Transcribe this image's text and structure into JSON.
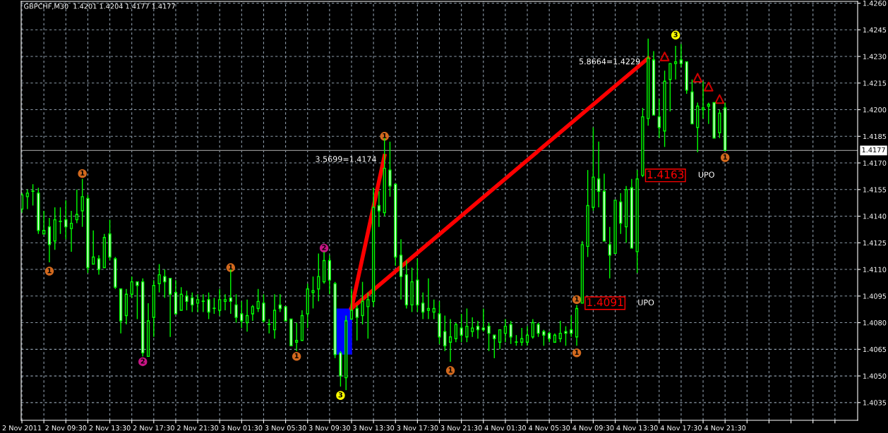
{
  "chart_data": {
    "type": "candlestick",
    "title": "GBPCHF,M30  1.4201 1.4204 1.4177 1.4177",
    "color": "#00ff00",
    "grid": true,
    "x": [
      "2011-11-02T05:30",
      "2011-11-02T06:00",
      "2011-11-02T06:30",
      "2011-11-02T07:00",
      "2011-11-02T07:30",
      "2011-11-02T08:00",
      "2011-11-02T08:30",
      "2011-11-02T09:00",
      "2011-11-02T09:30",
      "2011-11-02T10:00",
      "2011-11-02T10:30",
      "2011-11-02T11:00",
      "2011-11-02T11:30",
      "2011-11-02T12:00",
      "2011-11-02T12:30",
      "2011-11-02T13:00",
      "2011-11-02T13:30",
      "2011-11-02T14:00",
      "2011-11-02T14:30",
      "2011-11-02T15:00",
      "2011-11-02T15:30",
      "2011-11-02T16:00",
      "2011-11-02T16:30",
      "2011-11-02T17:00",
      "2011-11-02T17:30",
      "2011-11-02T18:00",
      "2011-11-02T18:30",
      "2011-11-02T19:00",
      "2011-11-02T19:30",
      "2011-11-02T20:00",
      "2011-11-02T20:30",
      "2011-11-02T21:00",
      "2011-11-02T21:30",
      "2011-11-02T22:00",
      "2011-11-02T22:30",
      "2011-11-02T23:00",
      "2011-11-02T23:30",
      "2011-11-03T00:00",
      "2011-11-03T00:30",
      "2011-11-03T01:00",
      "2011-11-03T01:30",
      "2011-11-03T02:00",
      "2011-11-03T02:30",
      "2011-11-03T03:00",
      "2011-11-03T03:30",
      "2011-11-03T04:00",
      "2011-11-03T04:30",
      "2011-11-03T05:00",
      "2011-11-03T05:30",
      "2011-11-03T06:00",
      "2011-11-03T06:30",
      "2011-11-03T07:00",
      "2011-11-03T07:30",
      "2011-11-03T08:00",
      "2011-11-03T08:30",
      "2011-11-03T09:00",
      "2011-11-03T09:30",
      "2011-11-03T10:00",
      "2011-11-03T10:30",
      "2011-11-03T11:00",
      "2011-11-03T11:30",
      "2011-11-03T12:00",
      "2011-11-03T12:30",
      "2011-11-03T13:00",
      "2011-11-03T13:30",
      "2011-11-03T14:00",
      "2011-11-03T14:30",
      "2011-11-03T15:00",
      "2011-11-03T15:30",
      "2011-11-03T16:00",
      "2011-11-03T16:30",
      "2011-11-03T17:00",
      "2011-11-03T17:30",
      "2011-11-03T18:00",
      "2011-11-03T18:30",
      "2011-11-03T19:00",
      "2011-11-03T19:30",
      "2011-11-03T20:00",
      "2011-11-03T20:30",
      "2011-11-03T21:00",
      "2011-11-03T21:30",
      "2011-11-03T22:00",
      "2011-11-03T22:30",
      "2011-11-03T23:00",
      "2011-11-03T23:30",
      "2011-11-04T00:00",
      "2011-11-04T00:30",
      "2011-11-04T01:00",
      "2011-11-04T01:30",
      "2011-11-04T02:00",
      "2011-11-04T02:30",
      "2011-11-04T03:00",
      "2011-11-04T03:30",
      "2011-11-04T04:00",
      "2011-11-04T04:30",
      "2011-11-04T05:00",
      "2011-11-04T05:30",
      "2011-11-04T06:00",
      "2011-11-04T06:30",
      "2011-11-04T07:00",
      "2011-11-04T07:30",
      "2011-11-04T08:00",
      "2011-11-04T08:30",
      "2011-11-04T09:00",
      "2011-11-04T09:30",
      "2011-11-04T10:00",
      "2011-11-04T10:30",
      "2011-11-04T11:00",
      "2011-11-04T11:30",
      "2011-11-04T12:00",
      "2011-11-04T12:30",
      "2011-11-04T13:00",
      "2011-11-04T13:30",
      "2011-11-04T14:00",
      "2011-11-04T14:30",
      "2011-11-04T15:00",
      "2011-11-04T15:30",
      "2011-11-04T16:00",
      "2011-11-04T16:30",
      "2011-11-04T17:00",
      "2011-11-04T17:30",
      "2011-11-04T18:00",
      "2011-11-04T18:30",
      "2011-11-04T19:00",
      "2011-11-04T19:30",
      "2011-11-04T20:00",
      "2011-11-04T20:30",
      "2011-11-04T21:00",
      "2011-11-04T21:30"
    ],
    "ohlc": [
      [
        1.4144,
        1.4153,
        1.4142,
        1.4152
      ],
      [
        1.4151,
        1.4155,
        1.4144,
        1.4153
      ],
      [
        1.4154,
        1.4158,
        1.4146,
        1.4154
      ],
      [
        1.4153,
        1.4156,
        1.413,
        1.4132
      ],
      [
        1.413,
        1.4143,
        1.413,
        1.4132
      ],
      [
        1.4134,
        1.4139,
        1.4114,
        1.4124
      ],
      [
        1.4126,
        1.4145,
        1.4121,
        1.4138
      ],
      [
        1.4137,
        1.4145,
        1.413,
        1.4137
      ],
      [
        1.4138,
        1.4149,
        1.4127,
        1.4134
      ],
      [
        1.4133,
        1.4143,
        1.412,
        1.4136
      ],
      [
        1.4138,
        1.4155,
        1.4136,
        1.4141
      ],
      [
        1.4143,
        1.4161,
        1.4134,
        1.4151
      ],
      [
        1.415,
        1.4152,
        1.4108,
        1.4111
      ],
      [
        1.4113,
        1.4132,
        1.4113,
        1.4117
      ],
      [
        1.4116,
        1.4118,
        1.4107,
        1.411
      ],
      [
        1.4111,
        1.413,
        1.4111,
        1.4128
      ],
      [
        1.413,
        1.4138,
        1.4115,
        1.4117
      ],
      [
        1.4116,
        1.4117,
        1.4099,
        1.41
      ],
      [
        1.4099,
        1.4099,
        1.4074,
        1.4081
      ],
      [
        1.4084,
        1.4099,
        1.4079,
        1.4096
      ],
      [
        1.4096,
        1.4106,
        1.4094,
        1.4103
      ],
      [
        1.4103,
        1.4103,
        1.4082,
        1.4101
      ],
      [
        1.4103,
        1.4105,
        1.4061,
        1.4063
      ],
      [
        1.4061,
        1.4091,
        1.4061,
        1.4081
      ],
      [
        1.4083,
        1.4104,
        1.4072,
        1.4101
      ],
      [
        1.4102,
        1.4113,
        1.4097,
        1.4107
      ],
      [
        1.4106,
        1.411,
        1.4094,
        1.4103
      ],
      [
        1.4105,
        1.4105,
        1.4072,
        1.4096
      ],
      [
        1.4097,
        1.4104,
        1.4085,
        1.4085
      ],
      [
        1.4087,
        1.41,
        1.4087,
        1.4096
      ],
      [
        1.4095,
        1.4098,
        1.4087,
        1.4092
      ],
      [
        1.4094,
        1.4097,
        1.4086,
        1.409
      ],
      [
        1.4091,
        1.4096,
        1.4086,
        1.4093
      ],
      [
        1.4092,
        1.4096,
        1.4086,
        1.4092
      ],
      [
        1.4093,
        1.4097,
        1.4082,
        1.4086
      ],
      [
        1.4088,
        1.4094,
        1.4085,
        1.4088
      ],
      [
        1.4087,
        1.4099,
        1.4084,
        1.4093
      ],
      [
        1.4092,
        1.4096,
        1.4087,
        1.4093
      ],
      [
        1.4094,
        1.411,
        1.4085,
        1.4092
      ],
      [
        1.409,
        1.4096,
        1.408,
        1.4083
      ],
      [
        1.4085,
        1.4092,
        1.4077,
        1.4081
      ],
      [
        1.408,
        1.4093,
        1.4075,
        1.4084
      ],
      [
        1.4085,
        1.409,
        1.4081,
        1.4089
      ],
      [
        1.4088,
        1.4099,
        1.4086,
        1.4092
      ],
      [
        1.4091,
        1.4096,
        1.408,
        1.4081
      ],
      [
        1.4079,
        1.4082,
        1.4074,
        1.4079
      ],
      [
        1.4076,
        1.4096,
        1.4071,
        1.4087
      ],
      [
        1.409,
        1.4096,
        1.4086,
        1.4088
      ],
      [
        1.4089,
        1.4089,
        1.4081,
        1.4081
      ],
      [
        1.4082,
        1.4082,
        1.4067,
        1.4067
      ],
      [
        1.4069,
        1.408,
        1.4064,
        1.407
      ],
      [
        1.407,
        1.4087,
        1.407,
        1.4084
      ],
      [
        1.4085,
        1.4102,
        1.4077,
        1.4099
      ],
      [
        1.4097,
        1.4106,
        1.4088,
        1.4098
      ],
      [
        1.4099,
        1.4119,
        1.4092,
        1.4106
      ],
      [
        1.4103,
        1.412,
        1.4102,
        1.4115
      ],
      [
        1.4115,
        1.4118,
        1.4096,
        1.4104
      ],
      [
        1.4102,
        1.4103,
        1.406,
        1.4062
      ],
      [
        1.4063,
        1.4064,
        1.4044,
        1.405
      ],
      [
        1.4049,
        1.4084,
        1.4042,
        1.4081
      ],
      [
        1.4082,
        1.4099,
        1.4082,
        1.4087
      ],
      [
        1.4088,
        1.409,
        1.407,
        1.4083
      ],
      [
        1.4084,
        1.4103,
        1.4079,
        1.4092
      ],
      [
        1.4089,
        1.4097,
        1.4071,
        1.4093
      ],
      [
        1.4092,
        1.4156,
        1.4089,
        1.4145
      ],
      [
        1.4146,
        1.4154,
        1.4134,
        1.4143
      ],
      [
        1.4142,
        1.4184,
        1.414,
        1.4167
      ],
      [
        1.4166,
        1.4182,
        1.4151,
        1.4157
      ],
      [
        1.4158,
        1.4158,
        1.4112,
        1.4117
      ],
      [
        1.4118,
        1.4127,
        1.4093,
        1.4106
      ],
      [
        1.4107,
        1.4115,
        1.4088,
        1.409
      ],
      [
        1.409,
        1.4111,
        1.4086,
        1.4103
      ],
      [
        1.4104,
        1.4116,
        1.4086,
        1.409
      ],
      [
        1.4091,
        1.4097,
        1.4082,
        1.4086
      ],
      [
        1.4087,
        1.4105,
        1.4082,
        1.4088
      ],
      [
        1.4086,
        1.4093,
        1.4082,
        1.4088
      ],
      [
        1.4085,
        1.4092,
        1.4068,
        1.4072
      ],
      [
        1.4075,
        1.4084,
        1.4064,
        1.4067
      ],
      [
        1.4069,
        1.4082,
        1.4058,
        1.4072
      ],
      [
        1.4071,
        1.408,
        1.4069,
        1.4079
      ],
      [
        1.4077,
        1.4085,
        1.4069,
        1.4073
      ],
      [
        1.4072,
        1.4088,
        1.4069,
        1.4078
      ],
      [
        1.4075,
        1.4083,
        1.4072,
        1.4077
      ],
      [
        1.4078,
        1.4081,
        1.4071,
        1.4076
      ],
      [
        1.4077,
        1.4088,
        1.4075,
        1.4076
      ],
      [
        1.4078,
        1.408,
        1.4064,
        1.4074
      ],
      [
        1.4073,
        1.4073,
        1.406,
        1.4071
      ],
      [
        1.4069,
        1.4076,
        1.4065,
        1.4076
      ],
      [
        1.4074,
        1.4082,
        1.4069,
        1.4078
      ],
      [
        1.4079,
        1.4081,
        1.4068,
        1.4072
      ],
      [
        1.4069,
        1.4073,
        1.4067,
        1.4069
      ],
      [
        1.4069,
        1.4077,
        1.4067,
        1.4071
      ],
      [
        1.4069,
        1.4078,
        1.4067,
        1.4073
      ],
      [
        1.4072,
        1.4082,
        1.4071,
        1.408
      ],
      [
        1.4079,
        1.408,
        1.4072,
        1.4074
      ],
      [
        1.4075,
        1.4076,
        1.4067,
        1.4073
      ],
      [
        1.4074,
        1.4075,
        1.4069,
        1.4071
      ],
      [
        1.4069,
        1.4074,
        1.4069,
        1.4073
      ],
      [
        1.4071,
        1.4081,
        1.4069,
        1.4074
      ],
      [
        1.4075,
        1.4078,
        1.4067,
        1.4074
      ],
      [
        1.4076,
        1.4084,
        1.4072,
        1.4074
      ],
      [
        1.4072,
        1.409,
        1.4067,
        1.4088
      ],
      [
        1.4091,
        1.4126,
        1.4091,
        1.4124
      ],
      [
        1.4123,
        1.4166,
        1.4117,
        1.4146
      ],
      [
        1.4145,
        1.419,
        1.4143,
        1.4162
      ],
      [
        1.4161,
        1.4182,
        1.4145,
        1.4154
      ],
      [
        1.4154,
        1.4164,
        1.4126,
        1.4126
      ],
      [
        1.4124,
        1.4134,
        1.4105,
        1.4118
      ],
      [
        1.4119,
        1.4149,
        1.4119,
        1.4149
      ],
      [
        1.4148,
        1.4153,
        1.413,
        1.4136
      ],
      [
        1.4134,
        1.4157,
        1.4125,
        1.4155
      ],
      [
        1.4156,
        1.4161,
        1.4122,
        1.4122
      ],
      [
        1.412,
        1.4166,
        1.4108,
        1.4161
      ],
      [
        1.4163,
        1.4201,
        1.4162,
        1.4196
      ],
      [
        1.4195,
        1.424,
        1.4191,
        1.4229
      ],
      [
        1.4228,
        1.4233,
        1.4197,
        1.4197
      ],
      [
        1.4196,
        1.4206,
        1.4184,
        1.419
      ],
      [
        1.4188,
        1.4222,
        1.4179,
        1.4216
      ],
      [
        1.4217,
        1.4226,
        1.4199,
        1.4226
      ],
      [
        1.4226,
        1.4236,
        1.4217,
        1.4227
      ],
      [
        1.4228,
        1.4237,
        1.4224,
        1.4226
      ],
      [
        1.4227,
        1.4227,
        1.4209,
        1.4211
      ],
      [
        1.421,
        1.4217,
        1.4192,
        1.4192
      ],
      [
        1.419,
        1.4204,
        1.4176,
        1.4202
      ],
      [
        1.42,
        1.4216,
        1.4195,
        1.4201
      ],
      [
        1.4202,
        1.4204,
        1.4192,
        1.4203
      ],
      [
        1.4204,
        1.4204,
        1.4184,
        1.4184
      ],
      [
        1.4187,
        1.42,
        1.4184,
        1.4198
      ],
      [
        1.4201,
        1.4204,
        1.4177,
        1.4177
      ]
    ],
    "series": [
      {
        "type": "bar",
        "color": "#0000ff",
        "x": [
          "2011-11-03T10:45"
        ],
        "values": [
          0.0026
        ],
        "base": [
          1.4062
        ]
      },
      {
        "type": "line",
        "color": "#ff0000",
        "x": [
          "2011-11-03T11:30",
          "2011-11-03T14:30"
        ],
        "values": [
          1.4088,
          1.4174
        ],
        "value_labels": [
          null,
          "3.5699=1.4174"
        ]
      },
      {
        "type": "line",
        "color": "#ff0000",
        "x": [
          "2011-11-03T11:30",
          "2011-11-04T14:30"
        ],
        "values": [
          1.4088,
          1.4229
        ],
        "value_labels": [
          null,
          "5.8664=1.4229"
        ]
      },
      {
        "type": "scatter",
        "marker": "circle",
        "x": [
          "2011-11-02T08:00",
          "2011-11-02T11:00",
          "2011-11-02T16:30",
          "2011-11-03T00:30",
          "2011-11-03T06:30",
          "2011-11-03T09:00",
          "2011-11-03T10:30",
          "2011-11-03T14:30",
          "2011-11-03T20:30",
          "2011-11-04T08:00",
          "2011-11-04T08:00",
          "2011-11-04T17:00",
          "2011-11-04T21:30"
        ],
        "values": [
          1.4109,
          1.4164,
          1.4058,
          1.4111,
          1.4061,
          1.4122,
          1.4039,
          1.4185,
          1.4053,
          1.4093,
          1.4063,
          1.4242,
          1.4173
        ],
        "colors": [
          "#d2691e",
          "#d2691e",
          "#c71585",
          "#d2691e",
          "#d2691e",
          "#c71585",
          "#ffff00",
          "#d2691e",
          "#d2691e",
          "#d2691e",
          "#d2691e",
          "#ffff00",
          "#d2691e"
        ]
      },
      {
        "type": "scatter",
        "marker": "triangle",
        "color": "#cc0000",
        "x": [
          "2011-11-04T16:00",
          "2011-11-04T19:00",
          "2011-11-04T20:00",
          "2011-11-04T21:00"
        ],
        "values": [
          1.423,
          1.4218,
          1.4213,
          1.4206
        ]
      }
    ],
    "annotations": [
      {
        "text": "1",
        "x": "2011-11-02T08:00",
        "y": 1.4109
      },
      {
        "text": "1",
        "x": "2011-11-02T11:00",
        "y": 1.4164
      },
      {
        "text": "2",
        "x": "2011-11-02T16:30",
        "y": 1.4058
      },
      {
        "text": "1",
        "x": "2011-11-03T00:30",
        "y": 1.4111
      },
      {
        "text": "1",
        "x": "2011-11-03T06:30",
        "y": 1.4061
      },
      {
        "text": "2",
        "x": "2011-11-03T09:00",
        "y": 1.4122
      },
      {
        "text": "3",
        "x": "2011-11-03T10:30",
        "y": 1.4039
      },
      {
        "text": "1",
        "x": "2011-11-03T14:30",
        "y": 1.4185
      },
      {
        "text": "1",
        "x": "2011-11-03T20:30",
        "y": 1.4053
      },
      {
        "text": "1",
        "x": "2011-11-04T08:00",
        "y": 1.4093
      },
      {
        "text": "1",
        "x": "2011-11-04T08:00",
        "y": 1.4063
      },
      {
        "text": "3",
        "x": "2011-11-04T17:00",
        "y": 1.4242
      },
      {
        "text": "1",
        "x": "2011-11-04T21:30",
        "y": 1.4173
      },
      {
        "text": "1.4091",
        "x": "2011-11-04T08:30",
        "y": 1.4091
      },
      "UPO",
      {
        "text": "1.4163",
        "x": "2011-11-04T14:00",
        "y": 1.4163
      },
      "UPO"
    ],
    "ref_lines": [
      {
        "axis": "y",
        "value": 1.4177,
        "label": "1.4177",
        "color": "#8c8c8c"
      }
    ],
    "xlim": [
      "2011-11-02T05:26",
      "2011-11-05T09:34"
    ],
    "xticks": [
      {
        "value": "2011-11-02T05:30",
        "label": "2 Nov 2011"
      },
      {
        "value": "2011-11-02T07:30",
        "label": null
      },
      {
        "value": "2011-11-02T09:30",
        "label": "2 Nov 09:30"
      },
      {
        "value": "2011-11-02T11:30",
        "label": null
      },
      {
        "value": "2011-11-02T13:30",
        "label": "2 Nov 13:30"
      },
      {
        "value": "2011-11-02T15:30",
        "label": null
      },
      {
        "value": "2011-11-02T17:30",
        "label": "2 Nov 17:30"
      },
      {
        "value": "2011-11-02T19:30",
        "label": null
      },
      {
        "value": "2011-11-02T21:30",
        "label": "2 Nov 21:30"
      },
      {
        "value": "2011-11-02T23:30",
        "label": null
      },
      {
        "value": "2011-11-03T01:30",
        "label": "3 Nov 01:30"
      },
      {
        "value": "2011-11-03T03:30",
        "label": null
      },
      {
        "value": "2011-11-03T05:30",
        "label": "3 Nov 05:30"
      },
      {
        "value": "2011-11-03T07:30",
        "label": null
      },
      {
        "value": "2011-11-03T09:30",
        "label": "3 Nov 09:30"
      },
      {
        "value": "2011-11-03T11:30",
        "label": null
      },
      {
        "value": "2011-11-03T13:30",
        "label": "3 Nov 13:30"
      },
      {
        "value": "2011-11-03T15:30",
        "label": null
      },
      {
        "value": "2011-11-03T17:30",
        "label": "3 Nov 17:30"
      },
      {
        "value": "2011-11-03T19:30",
        "label": null
      },
      {
        "value": "2011-11-03T21:30",
        "label": "3 Nov 21:30"
      },
      {
        "value": "2011-11-03T23:30",
        "label": null
      },
      {
        "value": "2011-11-04T01:30",
        "label": "4 Nov 01:30"
      },
      {
        "value": "2011-11-04T03:30",
        "label": null
      },
      {
        "value": "2011-11-04T05:30",
        "label": "4 Nov 05:30"
      },
      {
        "value": "2011-11-04T07:30",
        "label": null
      },
      {
        "value": "2011-11-04T09:30",
        "label": "4 Nov 09:30"
      },
      {
        "value": "2011-11-04T11:30",
        "label": null
      },
      {
        "value": "2011-11-04T13:30",
        "label": "4 Nov 13:30"
      },
      {
        "value": "2011-11-04T15:30",
        "label": null
      },
      {
        "value": "2011-11-04T17:30",
        "label": "4 Nov 17:30"
      },
      {
        "value": "2011-11-04T19:30",
        "label": null
      },
      {
        "value": "2011-11-04T21:30",
        "label": "4 Nov 21:30"
      },
      {
        "value": "2011-11-04T23:30",
        "label": null
      },
      {
        "value": "2011-11-05T01:30",
        "label": null
      },
      {
        "value": "2011-11-05T03:30",
        "label": null
      },
      {
        "value": "2011-11-05T05:30",
        "label": null
      },
      {
        "value": "2011-11-05T07:30",
        "label": null
      }
    ],
    "ylim": [
      1.4025,
      1.4261
    ],
    "yticks": [
      {
        "value": 1.4035,
        "label": "1.4035"
      },
      {
        "value": 1.405,
        "label": "1.4050"
      },
      {
        "value": 1.4065,
        "label": "1.4065"
      },
      {
        "value": 1.408,
        "label": "1.4080"
      },
      {
        "value": 1.4095,
        "label": "1.4095"
      },
      {
        "value": 1.411,
        "label": "1.4110"
      },
      {
        "value": 1.4125,
        "label": "1.4125"
      },
      {
        "value": 1.414,
        "label": "1.4140"
      },
      {
        "value": 1.4155,
        "label": "1.4155"
      },
      {
        "value": 1.417,
        "label": "1.4170"
      },
      {
        "value": 1.4185,
        "label": "1.4185"
      },
      {
        "value": 1.42,
        "label": "1.4200"
      },
      {
        "value": 1.4215,
        "label": "1.4215"
      },
      {
        "value": 1.423,
        "label": "1.4230"
      },
      {
        "value": 1.4245,
        "label": "1.4245"
      },
      {
        "value": 1.426,
        "label": "1.4260"
      }
    ]
  }
}
